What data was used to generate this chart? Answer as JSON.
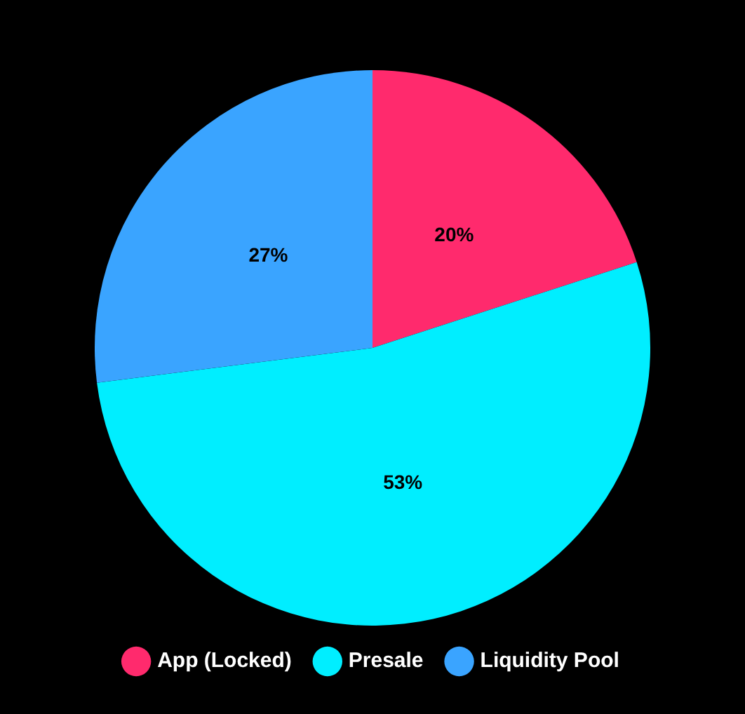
{
  "chart_data": {
    "type": "pie",
    "categories": [
      "App (Locked)",
      "Presale",
      "Liquidity Pool"
    ],
    "values": [
      20,
      53,
      27
    ],
    "colors": [
      "#ff2a6d",
      "#00eeff",
      "#3aa4ff"
    ],
    "value_labels": [
      "20%",
      "53%",
      "27%"
    ],
    "legend": "bottom"
  }
}
